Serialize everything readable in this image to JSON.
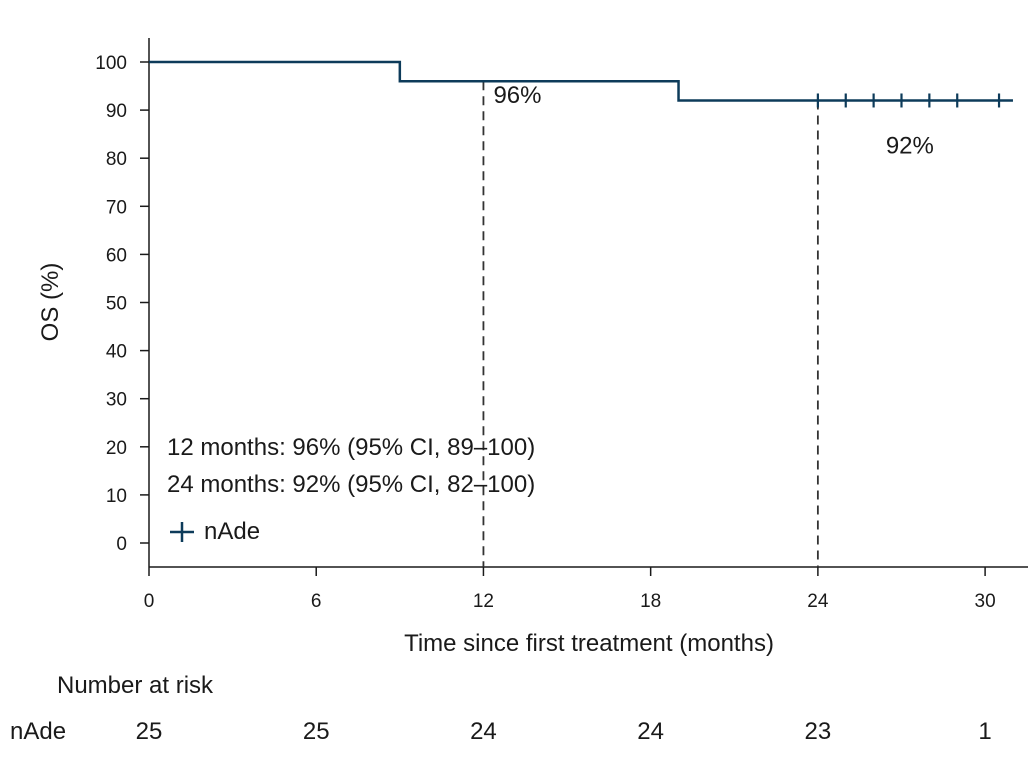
{
  "chart_data": {
    "type": "line",
    "subtype": "kaplan-meier",
    "xlabel": "Time since first treatment (months)",
    "ylabel": "OS (%)",
    "xlim": [
      0,
      31
    ],
    "ylim": [
      0,
      100
    ],
    "xticks": [
      0,
      6,
      12,
      18,
      24,
      30
    ],
    "yticks": [
      0,
      10,
      20,
      30,
      40,
      50,
      60,
      70,
      80,
      90,
      100
    ],
    "series": [
      {
        "name": "nAde",
        "color": "#0d3b5a",
        "steps": [
          {
            "x": 0,
            "y": 100
          },
          {
            "x": 9,
            "y": 96
          },
          {
            "x": 19,
            "y": 92
          },
          {
            "x": 31,
            "y": 92
          }
        ],
        "censored": [
          {
            "x": 24,
            "y": 92
          },
          {
            "x": 25,
            "y": 92
          },
          {
            "x": 26,
            "y": 92
          },
          {
            "x": 27,
            "y": 92
          },
          {
            "x": 28,
            "y": 92
          },
          {
            "x": 29,
            "y": 92
          },
          {
            "x": 30.5,
            "y": 92
          }
        ]
      }
    ],
    "reference_lines": [
      {
        "x": 12,
        "y": 96,
        "label": "96%"
      },
      {
        "x": 24,
        "y": 92,
        "label": "92%"
      }
    ],
    "summary": [
      "12 months: 96% (95% CI, 89–100)",
      "24 months: 92% (95% CI, 82–100)"
    ],
    "legend": {
      "label": "nAde",
      "placement": "bottom-left"
    },
    "risk_table": {
      "title": "Number at risk",
      "rows": [
        {
          "label": "nAde",
          "values": [
            25,
            25,
            24,
            24,
            23,
            1
          ]
        }
      ]
    }
  }
}
